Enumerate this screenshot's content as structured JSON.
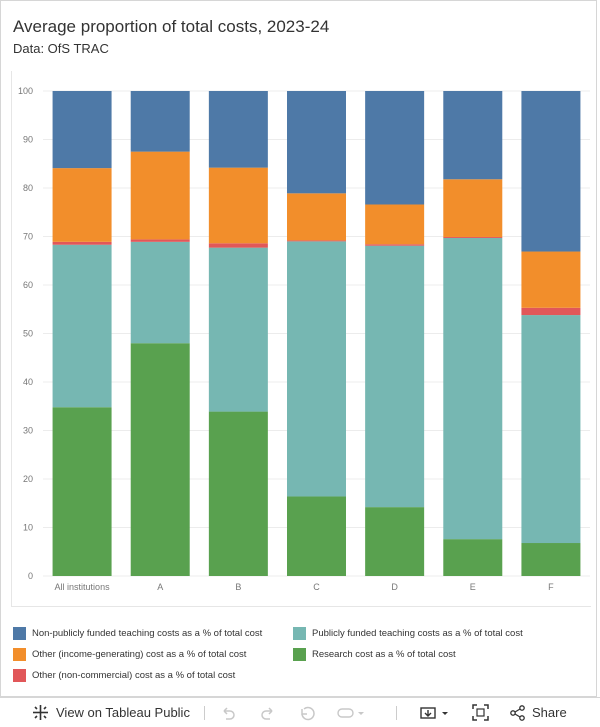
{
  "chart_data": {
    "type": "bar",
    "stacked": true,
    "title": "Average proportion of total costs, 2023-24",
    "subtitle": "Data: OfS TRAC",
    "categories": [
      "All institutions",
      "A",
      "B",
      "C",
      "D",
      "E",
      "F"
    ],
    "ylim": [
      0,
      100
    ],
    "yticks": [
      0,
      10,
      20,
      30,
      40,
      50,
      60,
      70,
      80,
      90,
      100
    ],
    "grid": true,
    "legend_position": "bottom",
    "series": [
      {
        "name": "Research cost as a % of total cost",
        "color": "#59a14f",
        "values": [
          34.8,
          48.0,
          33.9,
          16.4,
          14.2,
          7.6,
          6.8
        ]
      },
      {
        "name": "Publicly funded teaching costs as a % of total cost",
        "color": "#76b7b2",
        "values": [
          33.5,
          20.9,
          33.8,
          52.6,
          53.9,
          62.1,
          47.0
        ]
      },
      {
        "name": "Other (non-commercial) cost as a % of total cost",
        "color": "#e15759",
        "values": [
          0.6,
          0.5,
          0.9,
          0.2,
          0.3,
          0.2,
          1.5
        ]
      },
      {
        "name": "Other (income-generating) cost as a % of total cost",
        "color": "#f28e2b",
        "values": [
          15.2,
          18.1,
          15.6,
          9.7,
          8.2,
          11.9,
          11.6
        ]
      },
      {
        "name": "Non-publicly funded teaching costs as a % of total cost",
        "color": "#4e79a7",
        "values": [
          15.9,
          12.5,
          15.8,
          21.1,
          23.4,
          18.2,
          33.1
        ]
      }
    ],
    "legend": [
      {
        "name": "Non-publicly funded teaching costs as a % of total cost",
        "color": "#4e79a7"
      },
      {
        "name": "Publicly funded teaching costs as a % of total cost",
        "color": "#76b7b2"
      },
      {
        "name": "Other (income-generating) cost as a % of total cost",
        "color": "#f28e2b"
      },
      {
        "name": "Research cost as a % of total cost",
        "color": "#59a14f"
      },
      {
        "name": "Other (non-commercial) cost as a % of total cost",
        "color": "#e15759"
      }
    ]
  },
  "toolbar": {
    "view_label": "View on Tableau Public",
    "share_label": "Share",
    "icons": [
      "tableau-logo-icon",
      "undo-icon",
      "redo-icon",
      "revert-icon",
      "pause-icon",
      "download-icon",
      "fullscreen-icon",
      "share-icon"
    ]
  }
}
